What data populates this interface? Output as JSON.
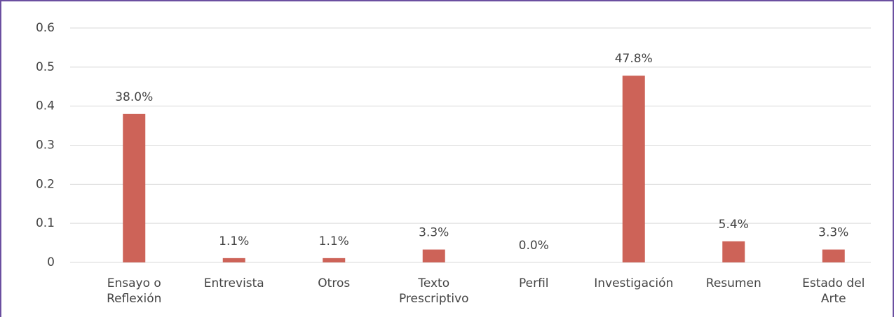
{
  "chart_data": {
    "type": "bar",
    "categories": [
      "Ensayo o\nReflexión",
      "Entrevista",
      "Otros",
      "Texto\nPrescriptivo",
      "Perfil",
      "Investigación",
      "Resumen",
      "Estado del\nArte"
    ],
    "values": [
      0.38,
      0.011,
      0.011,
      0.033,
      0,
      0.478,
      0.054,
      0.033
    ],
    "value_labels": [
      "38.0%",
      "1.1%",
      "1.1%",
      "3.3%",
      "0.0%",
      "47.8%",
      "5.4%",
      "3.3%"
    ],
    "color": "#cd6358",
    "ylim": [
      0,
      0.6
    ],
    "yticks": [
      0,
      0.1,
      0.2,
      0.3,
      0.4,
      0.5,
      0.6
    ],
    "grid": true
  }
}
